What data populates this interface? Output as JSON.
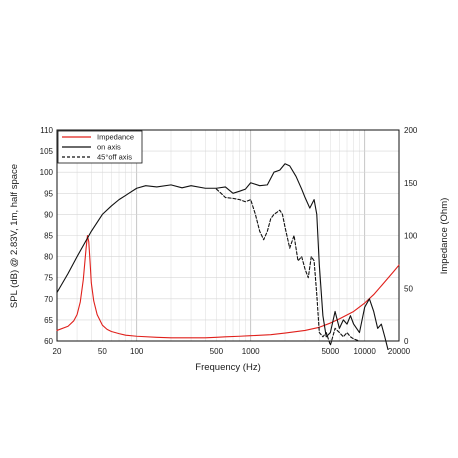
{
  "chart_data": {
    "type": "line",
    "xlabel": "Frequency (Hz)",
    "ylabel": "SPL (dB) @ 2.83V, 1m, half space",
    "ylabel_right": "Impedance (Ohm)",
    "x_scale": "log",
    "xlim": [
      20,
      20000
    ],
    "ylim": [
      60,
      110
    ],
    "ylim_right": [
      0,
      200
    ],
    "grid": true,
    "legend_position": "top-left",
    "x_ticks": [
      {
        "value": 20,
        "label": "20"
      },
      {
        "value": 50,
        "label": "50"
      },
      {
        "value": 100,
        "label": "100"
      },
      {
        "value": 500,
        "label": "500"
      },
      {
        "value": 1000,
        "label": "1000"
      },
      {
        "value": 5000,
        "label": "5000"
      },
      {
        "value": 10000,
        "label": "10000"
      },
      {
        "value": 20000,
        "label": "20000"
      }
    ],
    "y_ticks": [
      "60",
      "65",
      "70",
      "75",
      "80",
      "85",
      "90",
      "95",
      "100",
      "105",
      "110"
    ],
    "y_ticks_right": [
      "0",
      "50",
      "100",
      "150",
      "200"
    ],
    "series": [
      {
        "name": "Impedance",
        "axis": "right",
        "color": "#e0201b",
        "style": "solid",
        "x": [
          20,
          25,
          28,
          30,
          32,
          34,
          36,
          37,
          38,
          39,
          40,
          42,
          45,
          50,
          55,
          60,
          70,
          80,
          100,
          150,
          200,
          300,
          400,
          500,
          600,
          800,
          1000,
          1500,
          2000,
          3000,
          4000,
          5000,
          6000,
          8000,
          10000,
          12000,
          15000,
          18000,
          20000
        ],
        "values": [
          10,
          14,
          19,
          25,
          37,
          58,
          88,
          100,
          94,
          75,
          55,
          38,
          25,
          15,
          11,
          9,
          7,
          5.5,
          4.5,
          3.5,
          3,
          3,
          3,
          3.5,
          4,
          4.5,
          5,
          6,
          7.5,
          10,
          13,
          17,
          21,
          28,
          36,
          44,
          56,
          66,
          72
        ]
      },
      {
        "name": "on axis",
        "axis": "left",
        "color": "#111111",
        "style": "solid",
        "x": [
          20,
          25,
          30,
          40,
          50,
          60,
          70,
          80,
          100,
          120,
          150,
          200,
          250,
          300,
          400,
          500,
          600,
          700,
          800,
          900,
          1000,
          1200,
          1400,
          1600,
          1800,
          2000,
          2200,
          2500,
          2800,
          3000,
          3300,
          3600,
          3800,
          4000,
          4300,
          4600,
          5000,
          5500,
          6000,
          6500,
          7000,
          7500,
          8000,
          9000,
          10000,
          11000,
          12000,
          13000,
          14000,
          15000,
          16000
        ],
        "values": [
          71.5,
          76,
          80,
          86,
          90,
          92,
          93.5,
          94.5,
          96.2,
          96.8,
          96.5,
          97,
          96.3,
          96.8,
          96.2,
          96.2,
          96.5,
          95,
          95.5,
          96,
          97.5,
          96.8,
          97,
          100,
          100.5,
          102,
          101.5,
          99,
          96,
          94,
          91.5,
          93.5,
          90,
          78,
          66,
          61,
          62,
          67,
          63,
          65,
          64,
          66,
          64,
          62,
          68,
          70,
          67,
          63,
          64,
          61,
          58
        ]
      },
      {
        "name": "45°off axis",
        "axis": "left",
        "color": "#111111",
        "style": "dashed",
        "x": [
          500,
          550,
          600,
          700,
          800,
          900,
          1000,
          1100,
          1200,
          1300,
          1400,
          1500,
          1600,
          1700,
          1800,
          1900,
          2000,
          2200,
          2400,
          2600,
          2800,
          3000,
          3200,
          3400,
          3600,
          3800,
          4000,
          4300,
          4600,
          5000,
          5500,
          6000,
          6500,
          7000,
          7500,
          8000,
          9000
        ],
        "values": [
          96,
          95,
          94,
          93.8,
          93.5,
          93,
          93.5,
          90,
          86,
          84,
          86,
          89,
          90,
          90.5,
          91,
          90,
          87,
          82,
          85,
          79,
          80,
          77,
          75,
          80,
          79,
          71,
          62,
          61,
          62,
          59,
          63,
          62,
          61,
          62,
          61,
          60.5,
          60
        ]
      }
    ]
  }
}
